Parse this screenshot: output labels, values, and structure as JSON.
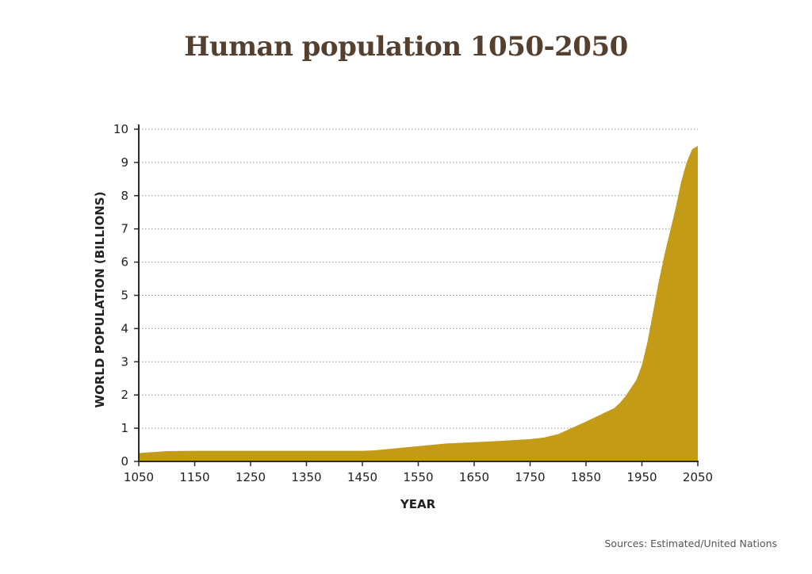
{
  "chart_data": {
    "type": "area",
    "title": "Human population 1050-2050",
    "xlabel": "YEAR",
    "ylabel": "WORLD POPULATION (BILLIONS)",
    "source": "Sources: Estimated/United Nations",
    "xlim": [
      1050,
      2050
    ],
    "ylim": [
      0,
      10
    ],
    "x_ticks": [
      1050,
      1150,
      1250,
      1350,
      1450,
      1550,
      1650,
      1750,
      1850,
      1950,
      2050
    ],
    "y_ticks": [
      0,
      1,
      2,
      3,
      4,
      5,
      6,
      7,
      8,
      9,
      10
    ],
    "grid": "horizontal-dotted",
    "series": [
      {
        "x": [
          1050,
          1100,
          1150,
          1200,
          1250,
          1300,
          1350,
          1400,
          1450,
          1470,
          1500,
          1550,
          1600,
          1650,
          1700,
          1750,
          1775,
          1800,
          1850,
          1875,
          1900,
          1910,
          1920,
          1930,
          1940,
          1950,
          1960,
          1970,
          1980,
          1990,
          2000,
          2010,
          2020,
          2030,
          2040,
          2050
        ],
        "values": [
          0.25,
          0.31,
          0.32,
          0.32,
          0.32,
          0.32,
          0.32,
          0.32,
          0.32,
          0.33,
          0.38,
          0.46,
          0.54,
          0.58,
          0.62,
          0.67,
          0.72,
          0.82,
          1.2,
          1.4,
          1.6,
          1.75,
          1.95,
          2.2,
          2.45,
          2.9,
          3.6,
          4.5,
          5.4,
          6.2,
          6.9,
          7.6,
          8.4,
          9.0,
          9.4,
          9.5
        ]
      }
    ],
    "colors": {
      "fill": "#c39b16",
      "title": "#553f2f",
      "axis": "#2b2b2b",
      "grid": "#9a9a9a"
    }
  }
}
